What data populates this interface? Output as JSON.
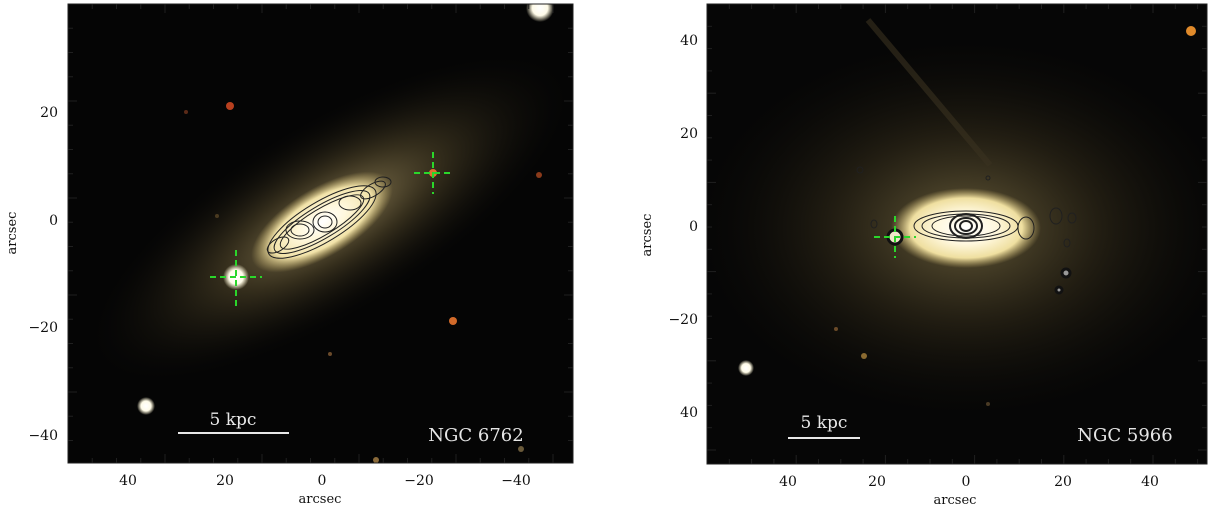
{
  "panels": [
    {
      "galaxy": "NGC 6762",
      "scalebar": "5 kpc",
      "xlabel": "arcsec",
      "ylabel": "arcsec",
      "xticks": [
        "40",
        "20",
        "0",
        "−20",
        "−40"
      ],
      "yticks": [
        "20",
        "0",
        "−20",
        "−40"
      ]
    },
    {
      "galaxy": "NGC 5966",
      "scalebar": "5 kpc",
      "xlabel": "arcsec",
      "ylabel": "arcsec",
      "xticks": [
        "40",
        "20",
        "0",
        "20",
        "40"
      ],
      "yticks": [
        "40",
        "20",
        "0",
        "−20",
        "40"
      ]
    }
  ],
  "colors": {
    "sky": "#050505",
    "galaxy_core": "#fff6d8",
    "galaxy_halo": "#b9a35c",
    "marker": "#2bd62b",
    "contour": "#202020"
  },
  "icons": [
    "crosshair-marker-icon",
    "contour-overlay-icon"
  ]
}
